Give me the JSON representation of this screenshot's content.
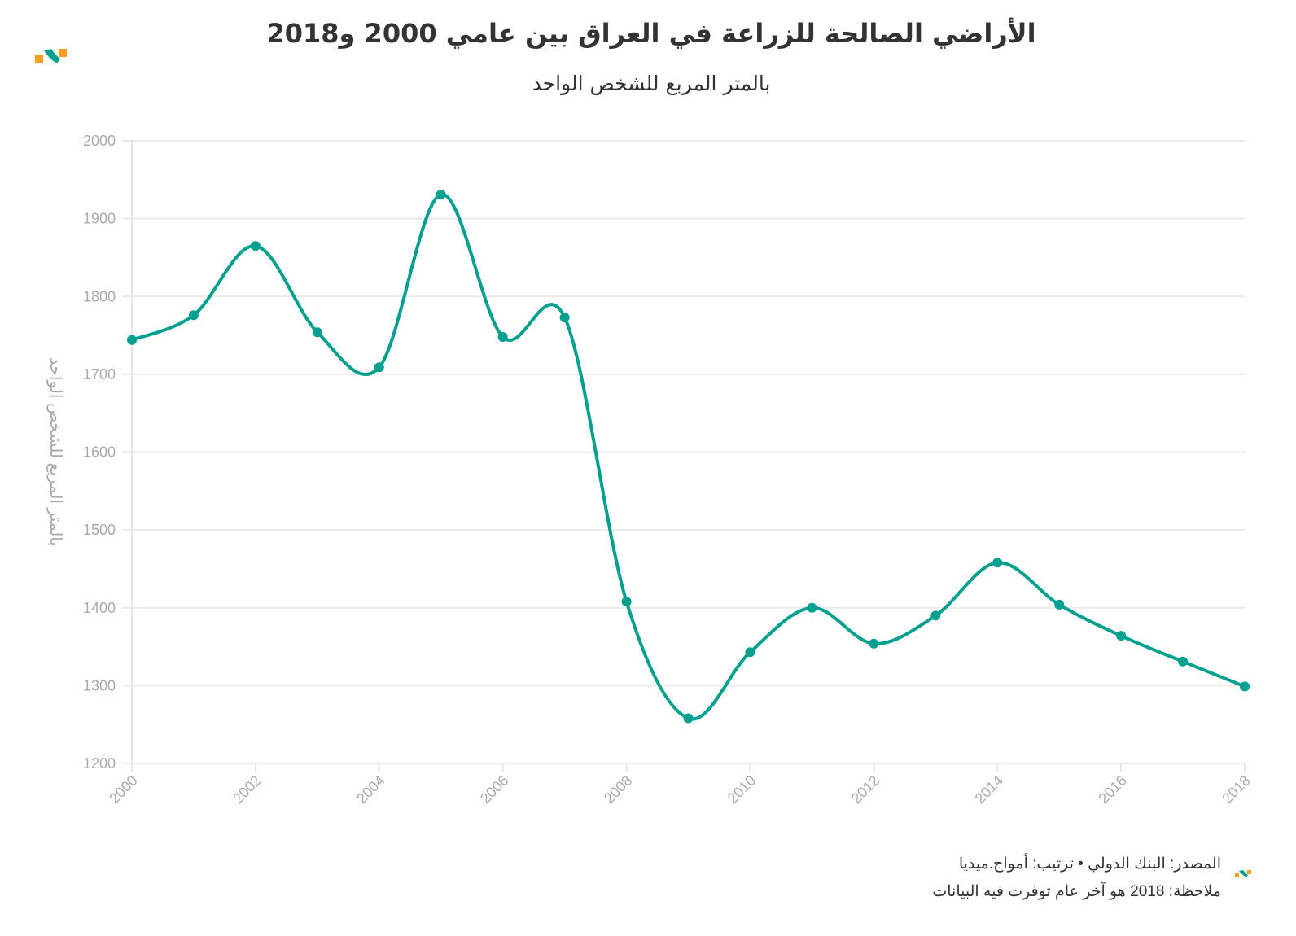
{
  "chart_data": {
    "type": "line",
    "title": "الأراضي الصالحة للزراعة في العراق بين عامي 2000 و2018",
    "subtitle": "بالمتر المربع للشخص الواحد",
    "xlabel": "",
    "ylabel": "بالمتر المربع للشخص الواحد",
    "x": [
      2000,
      2001,
      2002,
      2003,
      2004,
      2005,
      2006,
      2007,
      2008,
      2009,
      2010,
      2011,
      2012,
      2013,
      2014,
      2015,
      2016,
      2017,
      2018
    ],
    "series": [
      {
        "name": "الأراضي الصالحة للزراعة",
        "values": [
          1744,
          1776,
          1865,
          1754,
          1709,
          1931,
          1748,
          1773,
          1408,
          1258,
          1343,
          1400,
          1354,
          1390,
          1458,
          1404,
          1364,
          1331,
          1299
        ],
        "color": "#00a08f"
      }
    ],
    "ylim": [
      1200,
      2000
    ],
    "yticks": [
      "1200",
      "1300",
      "1400",
      "1500",
      "1600",
      "1700",
      "1800",
      "1900",
      "2000"
    ],
    "xticks": [
      "2000",
      "2002",
      "2004",
      "2006",
      "2008",
      "2010",
      "2012",
      "2014",
      "2016",
      "2018"
    ],
    "grid": true,
    "legend": "none"
  },
  "footer": {
    "source": "المصدر: البنك الدولي • ترتيب: أمواج.ميديا",
    "note": "ملاحظة: 2018 هو آخر عام توفرت فيه البيانات"
  },
  "colors": {
    "line": "#00a08f",
    "logo_orange": "#f7a01d",
    "logo_teal": "#00a08f"
  }
}
